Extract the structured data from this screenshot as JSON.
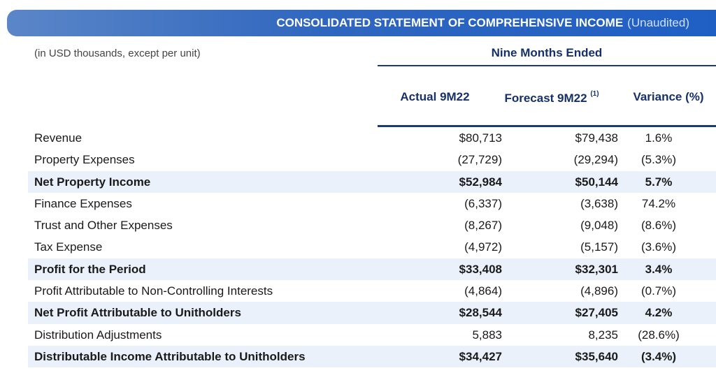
{
  "banner": {
    "title": "CONSOLIDATED STATEMENT OF COMPREHENSIVE INCOME",
    "subtitle": "(Unaudited)"
  },
  "units_note": "(in USD thousands, except per unit)",
  "period_header": "Nine Months Ended",
  "columns": {
    "actual": "Actual 9M22",
    "forecast": "Forecast 9M22",
    "forecast_note": "(1)",
    "variance": "Variance (%)"
  },
  "rows": [
    {
      "label": "Revenue",
      "actual": "$80,713",
      "forecast": "$79,438",
      "variance": "1.6%"
    },
    {
      "label": "Property Expenses",
      "actual": "(27,729)",
      "forecast": "(29,294)",
      "variance": "(5.3%)"
    },
    {
      "label": "Net Property Income",
      "actual": "$52,984",
      "forecast": "$50,144",
      "variance": "5.7%"
    },
    {
      "label": "Finance Expenses",
      "actual": "(6,337)",
      "forecast": "(3,638)",
      "variance": "74.2%"
    },
    {
      "label": "Trust and Other Expenses",
      "actual": "(8,267)",
      "forecast": "(9,048)",
      "variance": "(8.6%)"
    },
    {
      "label": "Tax Expense",
      "actual": "(4,972)",
      "forecast": "(5,157)",
      "variance": "(3.6%)"
    },
    {
      "label": "Profit for the Period",
      "actual": "$33,408",
      "forecast": "$32,301",
      "variance": "3.4%"
    },
    {
      "label": "Profit Attributable to Non-Controlling Interests",
      "actual": "(4,864)",
      "forecast": "(4,896)",
      "variance": "(0.7%)"
    },
    {
      "label": "Net Profit Attributable to Unitholders",
      "actual": "$28,544",
      "forecast": "$27,405",
      "variance": "4.2%"
    },
    {
      "label": "Distribution Adjustments",
      "actual": "5,883",
      "forecast": "8,235",
      "variance": "(28.6%)"
    },
    {
      "label": "Distributable Income Attributable to Unitholders",
      "actual": "$34,427",
      "forecast": "$35,640",
      "variance": "(3.4%)"
    }
  ]
}
